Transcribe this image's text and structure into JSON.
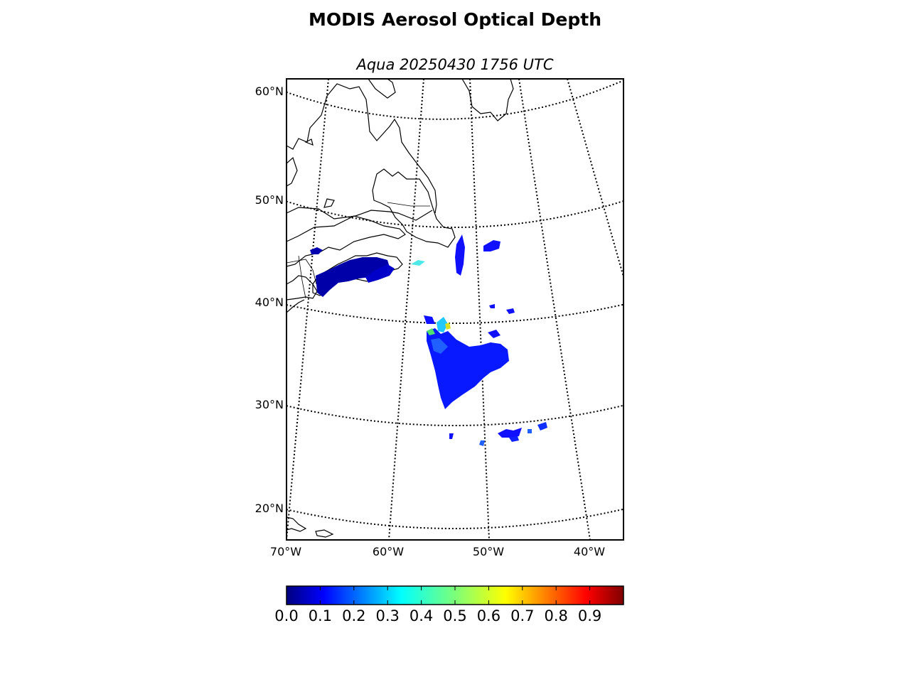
{
  "title": "MODIS Aerosol Optical Depth",
  "subtitle": "Aqua 20250430 1756 UTC",
  "map": {
    "projection": "conic",
    "lat_labels": [
      "60°N",
      "50°N",
      "40°N",
      "30°N",
      "20°N"
    ],
    "lon_labels": [
      "70°W",
      "60°W",
      "50°W",
      "40°W"
    ],
    "graticule_style": "dotted",
    "coastline_color": "#000000",
    "regions_with_data": [
      {
        "area": "Gulf of Maine / Nova Scotia coast",
        "aod": 0.05
      },
      {
        "area": "Open Atlantic SE of Newfoundland",
        "aod": 0.15
      },
      {
        "area": "Subtropical Atlantic cluster",
        "aod": 0.2
      }
    ]
  },
  "colorbar": {
    "colormap": "jet",
    "min": 0.0,
    "max": 1.0,
    "ticks": [
      "0.0",
      "0.1",
      "0.2",
      "0.3",
      "0.4",
      "0.5",
      "0.6",
      "0.7",
      "0.8",
      "0.9"
    ]
  }
}
